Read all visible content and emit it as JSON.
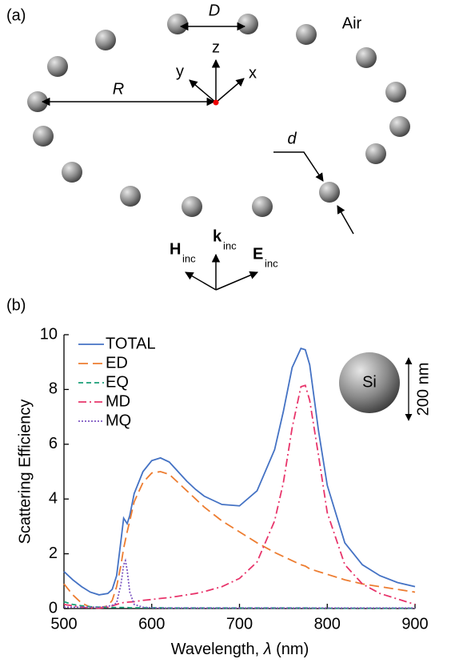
{
  "panel_a": {
    "label": "(a)",
    "spacing_label": "D",
    "radius_label": "R",
    "diameter_label": "d",
    "medium": "Air",
    "axes": {
      "z": "z",
      "y": "y",
      "x": "x"
    },
    "incident": {
      "H": "H",
      "H_sub": "inc",
      "k": "k",
      "k_sub": "inc",
      "E": "E",
      "E_sub": "inc"
    }
  },
  "panel_b": {
    "label": "(b)"
  },
  "chart_data": {
    "type": "line",
    "x_label_parts": [
      "Wavelength, ",
      "λ",
      " (nm)"
    ],
    "y_label": "Scattering Efficiency",
    "inset_material": "Si",
    "inset_size": "200 nm",
    "x": [
      500,
      510,
      520,
      530,
      540,
      550,
      555,
      560,
      565,
      568,
      570,
      572,
      575,
      580,
      590,
      600,
      610,
      620,
      630,
      640,
      650,
      660,
      680,
      700,
      720,
      740,
      750,
      760,
      770,
      775,
      780,
      790,
      800,
      820,
      840,
      860,
      880,
      900
    ],
    "series": [
      {
        "name": "TOTAL",
        "color": "#4472c4",
        "dash": "",
        "values": [
          1.35,
          1.05,
          0.8,
          0.6,
          0.5,
          0.55,
          0.7,
          1.2,
          2.5,
          3.3,
          3.2,
          3.1,
          3.4,
          4.2,
          5.0,
          5.4,
          5.5,
          5.35,
          5.0,
          4.65,
          4.35,
          4.1,
          3.8,
          3.75,
          4.3,
          5.8,
          7.2,
          8.8,
          9.5,
          9.45,
          8.9,
          6.5,
          4.5,
          2.4,
          1.6,
          1.2,
          0.95,
          0.8
        ]
      },
      {
        "name": "ED",
        "color": "#ed7d31",
        "dash": "12 6",
        "values": [
          0.9,
          0.5,
          0.2,
          0.05,
          0.02,
          0.1,
          0.3,
          0.8,
          1.6,
          2.2,
          2.5,
          2.8,
          3.2,
          3.9,
          4.6,
          4.95,
          5.0,
          4.9,
          4.6,
          4.3,
          4.0,
          3.7,
          3.2,
          2.8,
          2.4,
          2.05,
          1.9,
          1.75,
          1.6,
          1.55,
          1.45,
          1.35,
          1.25,
          1.05,
          0.9,
          0.8,
          0.7,
          0.6
        ]
      },
      {
        "name": "EQ",
        "color": "#1a9e77",
        "dash": "6 4",
        "values": [
          0.25,
          0.15,
          0.1,
          0.07,
          0.05,
          0.04,
          0.04,
          0.04,
          0.04,
          0.04,
          0.04,
          0.04,
          0.03,
          0.03,
          0.03,
          0.03,
          0.03,
          0.02,
          0.02,
          0.02,
          0.02,
          0.02,
          0.02,
          0.02,
          0.02,
          0.02,
          0.02,
          0.02,
          0.02,
          0.02,
          0.02,
          0.01,
          0.01,
          0.01,
          0.01,
          0.01,
          0.01,
          0.01
        ]
      },
      {
        "name": "MD",
        "color": "#e8356b",
        "dash": "10 4 2 4",
        "values": [
          0.15,
          0.1,
          0.05,
          0.02,
          0.01,
          0.05,
          0.1,
          0.15,
          0.2,
          0.22,
          0.22,
          0.23,
          0.24,
          0.25,
          0.3,
          0.33,
          0.37,
          0.4,
          0.45,
          0.5,
          0.55,
          0.62,
          0.8,
          1.1,
          1.7,
          3.2,
          4.6,
          6.6,
          8.1,
          8.15,
          7.6,
          5.6,
          3.5,
          1.6,
          0.9,
          0.55,
          0.35,
          0.15
        ]
      },
      {
        "name": "MQ",
        "color": "#7e57c2",
        "dash": "2 2",
        "values": [
          0.05,
          0.05,
          0.05,
          0.05,
          0.05,
          0.08,
          0.12,
          0.2,
          0.9,
          1.6,
          1.75,
          1.4,
          0.6,
          0.15,
          0.05,
          0.03,
          0.02,
          0.02,
          0.02,
          0.02,
          0.02,
          0.02,
          0.02,
          0.02,
          0.02,
          0.02,
          0.02,
          0.02,
          0.02,
          0.02,
          0.02,
          0.02,
          0.02,
          0.02,
          0.02,
          0.02,
          0.02,
          0.02
        ]
      }
    ],
    "xlim": [
      500,
      900
    ],
    "ylim": [
      0,
      10
    ],
    "xticks": [
      500,
      600,
      700,
      800,
      900
    ],
    "yticks": [
      0,
      2,
      4,
      6,
      8,
      10
    ],
    "legend": "upper left"
  }
}
